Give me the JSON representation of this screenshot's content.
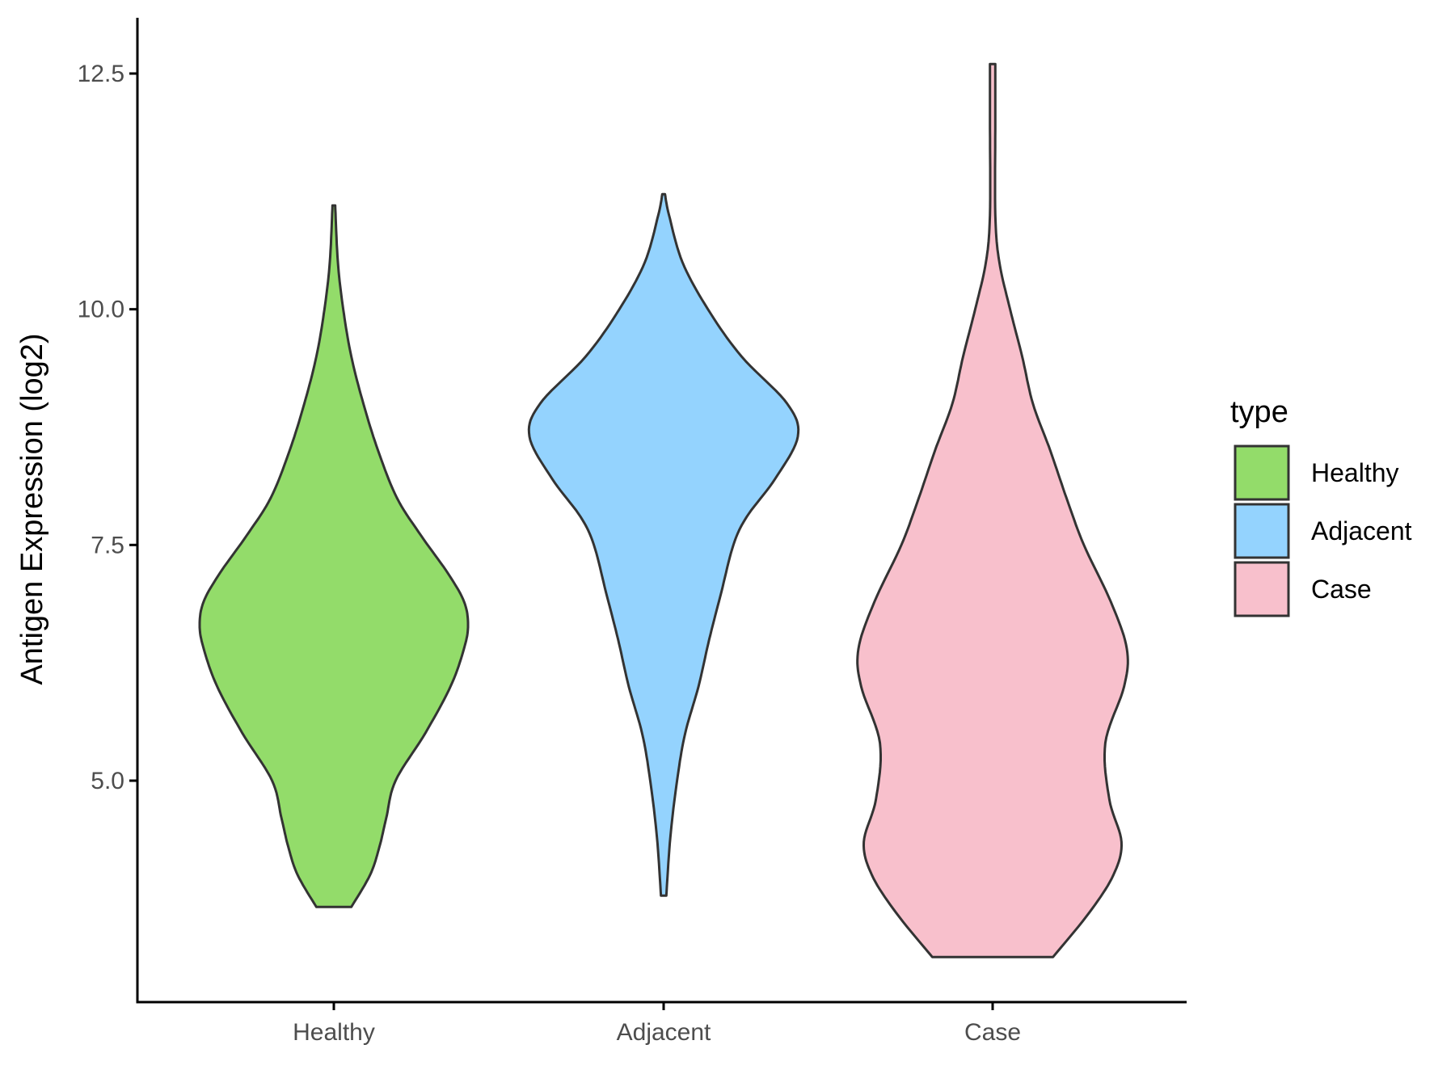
{
  "chart_data": {
    "type": "violin",
    "title": "",
    "xlabel": "",
    "ylabel": "Antigen Expression (log2)",
    "ylim": [
      2.7,
      13.2
    ],
    "yticks": [
      5.0,
      7.5,
      10.0,
      12.5
    ],
    "ytick_labels": [
      "5.0",
      "7.5",
      "10.0",
      "12.5"
    ],
    "categories": [
      "Healthy",
      "Adjacent",
      "Case"
    ],
    "grid": false,
    "legend": {
      "title": "type",
      "placement": "right",
      "entries": [
        "Healthy",
        "Adjacent",
        "Case"
      ]
    },
    "series": [
      {
        "category": "Healthy",
        "color": "#93dc6a",
        "min": 3.66,
        "max": 11.1,
        "profile": [
          [
            3.66,
            0.13
          ],
          [
            4.0,
            0.27
          ],
          [
            4.3,
            0.34
          ],
          [
            4.6,
            0.39
          ],
          [
            5.0,
            0.46
          ],
          [
            5.5,
            0.68
          ],
          [
            6.0,
            0.87
          ],
          [
            6.4,
            0.97
          ],
          [
            6.65,
            1.0
          ],
          [
            6.9,
            0.97
          ],
          [
            7.2,
            0.85
          ],
          [
            7.6,
            0.65
          ],
          [
            8.0,
            0.47
          ],
          [
            8.5,
            0.33
          ],
          [
            9.0,
            0.22
          ],
          [
            9.5,
            0.13
          ],
          [
            10.0,
            0.07
          ],
          [
            10.5,
            0.03
          ],
          [
            11.1,
            0.01
          ]
        ]
      },
      {
        "category": "Adjacent",
        "color": "#94d3fe",
        "min": 3.78,
        "max": 11.22,
        "profile": [
          [
            3.78,
            0.02
          ],
          [
            4.4,
            0.05
          ],
          [
            5.0,
            0.1
          ],
          [
            5.5,
            0.16
          ],
          [
            6.0,
            0.26
          ],
          [
            6.5,
            0.34
          ],
          [
            7.0,
            0.43
          ],
          [
            7.5,
            0.52
          ],
          [
            7.8,
            0.62
          ],
          [
            8.2,
            0.83
          ],
          [
            8.65,
            1.0
          ],
          [
            9.0,
            0.92
          ],
          [
            9.5,
            0.58
          ],
          [
            10.0,
            0.33
          ],
          [
            10.5,
            0.14
          ],
          [
            11.0,
            0.04
          ],
          [
            11.22,
            0.01
          ]
        ]
      },
      {
        "category": "Case",
        "color": "#f8c0cc",
        "min": 3.13,
        "max": 12.6,
        "profile": [
          [
            3.13,
            0.45
          ],
          [
            3.6,
            0.72
          ],
          [
            4.0,
            0.9
          ],
          [
            4.35,
            0.96
          ],
          [
            4.8,
            0.87
          ],
          [
            5.4,
            0.84
          ],
          [
            6.0,
            0.98
          ],
          [
            6.4,
            1.0
          ],
          [
            6.9,
            0.88
          ],
          [
            7.5,
            0.68
          ],
          [
            8.0,
            0.55
          ],
          [
            8.5,
            0.43
          ],
          [
            9.0,
            0.3
          ],
          [
            9.5,
            0.22
          ],
          [
            10.0,
            0.13
          ],
          [
            10.5,
            0.05
          ],
          [
            11.0,
            0.02
          ],
          [
            12.0,
            0.02
          ],
          [
            12.6,
            0.02
          ]
        ]
      }
    ]
  }
}
